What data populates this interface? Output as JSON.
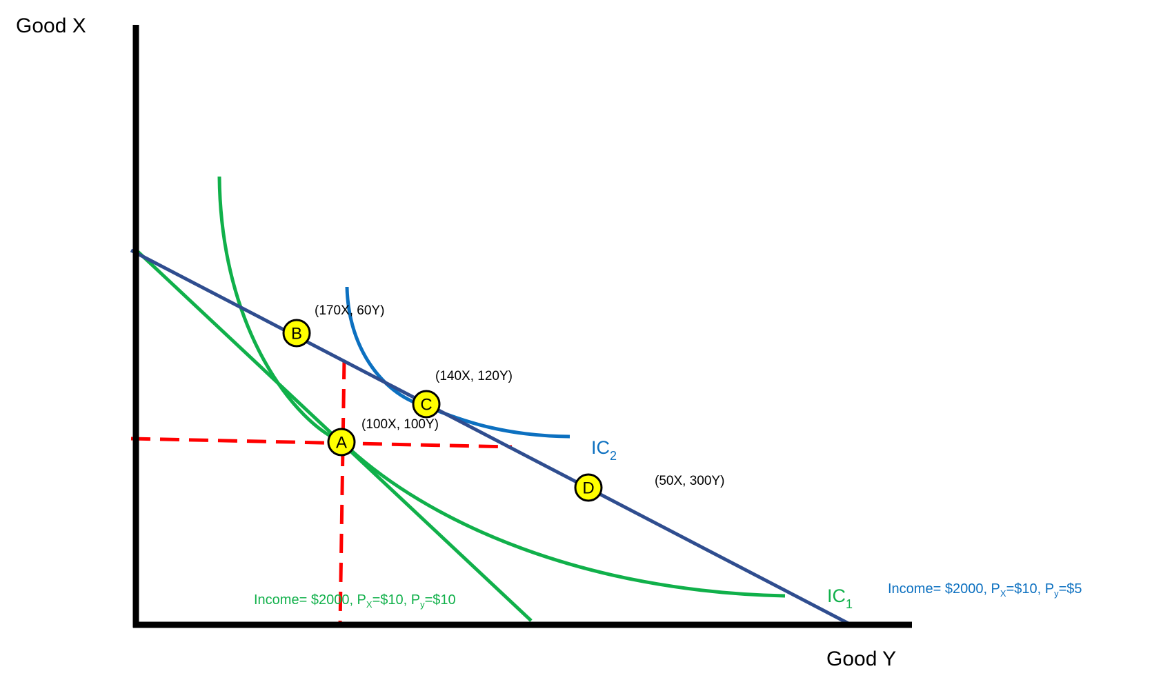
{
  "colors": {
    "axis": "#000000",
    "budget_line_blue": "#2f4d8f",
    "budget_line_green": "#10b04a",
    "ic1": "#10b04a",
    "ic2": "#0c70c0",
    "guide_dashes": "#ff0000",
    "point_fill": "#ffff00",
    "point_stroke": "#000000"
  },
  "axes": {
    "vertical_label": "Good X",
    "horizontal_label": "Good Y"
  },
  "curves": {
    "ic1": {
      "label": "IC",
      "subscript": "1"
    },
    "ic2": {
      "label": "IC",
      "subscript": "2"
    }
  },
  "points": [
    {
      "id": "A",
      "letter": "A",
      "coords": "(100X, 100Y)"
    },
    {
      "id": "B",
      "letter": "B",
      "coords": "(170X, 60Y)"
    },
    {
      "id": "C",
      "letter": "C",
      "coords": "(140X, 120Y)"
    },
    {
      "id": "D",
      "letter": "D",
      "coords": "(50X, 300Y)"
    }
  ],
  "budget_labels": {
    "green": {
      "income": "Income= $2000, P",
      "px_sub": "X",
      "px_val": "=$10, P",
      "py_sub": "y",
      "py_val": "=$10"
    },
    "blue": {
      "income": "Income= $2000, P",
      "px_sub": "X",
      "px_val": "=$10, P",
      "py_sub": "y",
      "py_val": "=$5"
    }
  }
}
